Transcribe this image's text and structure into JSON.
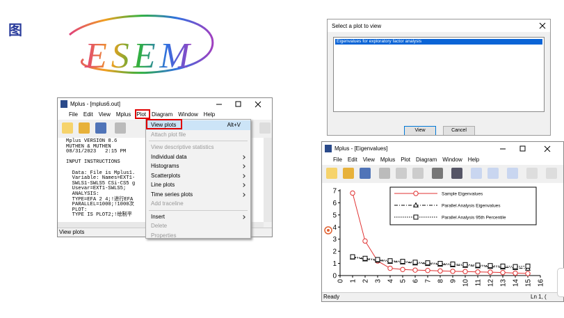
{
  "figure_label": "图",
  "logo": {
    "text": "ESEM"
  },
  "main_window": {
    "title": "Mplus - [mplus6.out]",
    "menu": [
      "File",
      "Edit",
      "View",
      "Mplus",
      "Plot",
      "Diagram",
      "Window",
      "Help"
    ],
    "output_blocks": [
      [
        "Mplus VERSION 8.6",
        "MUTHEN & MUTHEN",
        "08/31/2023   2:15 PM"
      ],
      [
        "INPUT INSTRUCTIONS"
      ],
      [
        "  Data: File is Mplus1.",
        "  Variable: Names=EXT1-",
        "  SWLS1-SWLS5 CSi-CS5 g",
        "  Usevar=EXT1-SWLS5;",
        "  ANALYSIS:",
        "  TYPE=EFA 2 4;!进行EFA",
        "  PARALLEL=1000;!1000次",
        "  PLOT:",
        "  TYPE IS PLOT2;!绘制平"
      ]
    ],
    "status": "View plots"
  },
  "plot_menu": {
    "groups": [
      [
        {
          "label": "View plots",
          "shortcut": "Alt+V",
          "enabled": true,
          "selected": true
        },
        {
          "label": "Attach plot file",
          "enabled": false
        }
      ],
      [
        {
          "label": "View descriptive statistics",
          "enabled": false
        },
        {
          "label": "Individual data",
          "enabled": true,
          "submenu": true
        },
        {
          "label": "Histograms",
          "enabled": true,
          "submenu": true
        },
        {
          "label": "Scatterplots",
          "enabled": true,
          "submenu": true
        },
        {
          "label": "Line plots",
          "enabled": true,
          "submenu": true
        },
        {
          "label": "Time series plots",
          "enabled": true,
          "submenu": true
        },
        {
          "label": "Add traceline",
          "enabled": false
        }
      ],
      [
        {
          "label": "Insert",
          "enabled": true,
          "submenu": true
        },
        {
          "label": "Delete",
          "enabled": false
        },
        {
          "label": "Properties",
          "enabled": false
        }
      ]
    ]
  },
  "dialog": {
    "title": "Select a plot to view",
    "items": [
      "Eigenvalues for exploratory factor analysis"
    ],
    "buttons": [
      "View",
      "Cancel"
    ]
  },
  "plot_window": {
    "title": "Mplus - [Eigenvalues]",
    "menu": [
      "File",
      "Edit",
      "View",
      "Mplus",
      "Plot",
      "Diagram",
      "Window",
      "Help"
    ],
    "status": "Ready",
    "status_right": "Ln 1, ("
  },
  "chart_data": {
    "type": "line",
    "x": [
      1,
      2,
      3,
      4,
      5,
      6,
      7,
      8,
      9,
      10,
      11,
      12,
      13,
      14,
      15
    ],
    "series": [
      {
        "name": "Sample Eigenvalues",
        "color": "#e03030",
        "dash": "solid",
        "marker": "circle",
        "values": [
          6.8,
          2.85,
          1.2,
          0.6,
          0.5,
          0.45,
          0.42,
          0.38,
          0.35,
          0.33,
          0.3,
          0.28,
          0.25,
          0.2,
          0.17
        ]
      },
      {
        "name": "Parallel Analysis Eigenvalues",
        "color": "#000000",
        "dash": "dashdot",
        "marker": "triangle",
        "values": [
          1.5,
          1.35,
          1.25,
          1.15,
          1.1,
          1.02,
          0.97,
          0.92,
          0.87,
          0.82,
          0.78,
          0.73,
          0.68,
          0.63,
          0.58
        ]
      },
      {
        "name": "Parallel Analysis 95th Percentile",
        "color": "#000000",
        "dash": "dotted",
        "marker": "square",
        "values": [
          1.55,
          1.42,
          1.32,
          1.22,
          1.17,
          1.1,
          1.05,
          1.0,
          0.95,
          0.9,
          0.86,
          0.82,
          0.78,
          0.74,
          0.78
        ]
      }
    ],
    "xlim": [
      0,
      16
    ],
    "ylim": [
      0,
      7
    ],
    "xticks": [
      0,
      1,
      2,
      3,
      4,
      5,
      6,
      7,
      8,
      9,
      10,
      11,
      12,
      13,
      14,
      15,
      16
    ],
    "yticks": [
      0,
      1,
      2,
      3,
      4,
      5,
      6,
      7
    ]
  }
}
